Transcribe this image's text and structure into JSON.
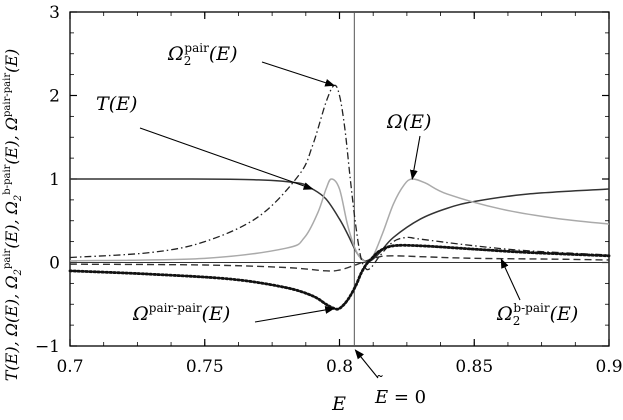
{
  "chart_data": {
    "type": "line",
    "xlabel": "E",
    "ylabel": "T(E), Ω(E), Ω₂ᵖᵃⁱʳ(E), Ω₂ᵇ⁻ᵖᵃⁱʳ(E), Ωᵖᵃⁱʳ⁻ᵖᵃⁱʳ(E)",
    "xlim": [
      0.7,
      0.9
    ],
    "ylim": [
      -1,
      3
    ],
    "xticks": [
      "0.7",
      "0.75",
      "0.8",
      "0.85",
      "0.9"
    ],
    "yticks": [
      "−1",
      "0",
      "1",
      "2",
      "3"
    ],
    "grid": false,
    "vline": {
      "x": 0.8055,
      "label": "Ẽ = 0"
    },
    "series": [
      {
        "name": "T(E)",
        "style": "solid",
        "color": "#333333",
        "points": [
          [
            0.7,
            1.0
          ],
          [
            0.74,
            1.0
          ],
          [
            0.77,
            0.99
          ],
          [
            0.785,
            0.95
          ],
          [
            0.79,
            0.88
          ],
          [
            0.795,
            0.76
          ],
          [
            0.8,
            0.52
          ],
          [
            0.803,
            0.34
          ],
          [
            0.806,
            0.14
          ],
          [
            0.808,
            0.05
          ],
          [
            0.81,
            0.01
          ],
          [
            0.812,
            0.03
          ],
          [
            0.815,
            0.12
          ],
          [
            0.82,
            0.3
          ],
          [
            0.83,
            0.52
          ],
          [
            0.84,
            0.65
          ],
          [
            0.85,
            0.73
          ],
          [
            0.87,
            0.82
          ],
          [
            0.9,
            0.88
          ]
        ]
      },
      {
        "name": "Ω(E)",
        "style": "solid",
        "color": "#aaaaaa",
        "points": [
          [
            0.7,
            0.02
          ],
          [
            0.75,
            0.05
          ],
          [
            0.78,
            0.17
          ],
          [
            0.787,
            0.3
          ],
          [
            0.792,
            0.6
          ],
          [
            0.795,
            0.88
          ],
          [
            0.797,
            1.0
          ],
          [
            0.8,
            0.88
          ],
          [
            0.803,
            0.45
          ],
          [
            0.806,
            0.15
          ],
          [
            0.809,
            0.02
          ],
          [
            0.812,
            0.05
          ],
          [
            0.816,
            0.35
          ],
          [
            0.82,
            0.7
          ],
          [
            0.824,
            0.93
          ],
          [
            0.827,
            1.0
          ],
          [
            0.832,
            0.95
          ],
          [
            0.84,
            0.82
          ],
          [
            0.86,
            0.64
          ],
          [
            0.88,
            0.53
          ],
          [
            0.9,
            0.46
          ]
        ]
      },
      {
        "name": "Ω₂ᵖᵃⁱʳ(E)",
        "style": "dashdot",
        "color": "#222222",
        "points": [
          [
            0.7,
            0.06
          ],
          [
            0.73,
            0.12
          ],
          [
            0.75,
            0.25
          ],
          [
            0.77,
            0.55
          ],
          [
            0.785,
            1.05
          ],
          [
            0.79,
            1.4
          ],
          [
            0.795,
            1.92
          ],
          [
            0.798,
            2.12
          ],
          [
            0.8,
            2.0
          ],
          [
            0.802,
            1.6
          ],
          [
            0.804,
            1.0
          ],
          [
            0.806,
            0.45
          ],
          [
            0.808,
            0.05
          ],
          [
            0.81,
            -0.08
          ],
          [
            0.812,
            -0.05
          ],
          [
            0.815,
            0.08
          ],
          [
            0.82,
            0.25
          ],
          [
            0.825,
            0.3
          ],
          [
            0.83,
            0.28
          ],
          [
            0.85,
            0.2
          ],
          [
            0.87,
            0.14
          ],
          [
            0.9,
            0.09
          ]
        ]
      },
      {
        "name": "Ω₂ᵇ⁻ᵖᵃⁱʳ(E)",
        "style": "dashed",
        "color": "#333333",
        "points": [
          [
            0.7,
            -0.02
          ],
          [
            0.75,
            -0.03
          ],
          [
            0.78,
            -0.06
          ],
          [
            0.795,
            -0.1
          ],
          [
            0.8,
            -0.09
          ],
          [
            0.805,
            -0.04
          ],
          [
            0.81,
            0.02
          ],
          [
            0.815,
            0.07
          ],
          [
            0.82,
            0.08
          ],
          [
            0.83,
            0.07
          ],
          [
            0.85,
            0.05
          ],
          [
            0.88,
            0.04
          ],
          [
            0.9,
            0.03
          ]
        ]
      },
      {
        "name": "Ωᵖᵃⁱʳ⁻ᵖᵃⁱʳ(E)",
        "style": "dotted",
        "color": "#111111",
        "points": [
          [
            0.7,
            -0.1
          ],
          [
            0.73,
            -0.14
          ],
          [
            0.76,
            -0.2
          ],
          [
            0.78,
            -0.3
          ],
          [
            0.79,
            -0.4
          ],
          [
            0.795,
            -0.5
          ],
          [
            0.798,
            -0.55
          ],
          [
            0.8,
            -0.55
          ],
          [
            0.803,
            -0.45
          ],
          [
            0.806,
            -0.28
          ],
          [
            0.808,
            -0.13
          ],
          [
            0.81,
            -0.02
          ],
          [
            0.812,
            0.05
          ],
          [
            0.815,
            0.14
          ],
          [
            0.82,
            0.2
          ],
          [
            0.83,
            0.2
          ],
          [
            0.85,
            0.16
          ],
          [
            0.87,
            0.12
          ],
          [
            0.9,
            0.08
          ]
        ]
      }
    ],
    "annotations": [
      {
        "label": "T(E)",
        "base": "T",
        "sup": "",
        "tail": "(E)",
        "series": 0,
        "at": [
          0.79,
          0.88
        ]
      },
      {
        "label": "Ω₂ᵖᵃⁱʳ(E)",
        "base": "Ω",
        "sub": "2",
        "sup": "pair",
        "tail": "(E)",
        "series": 2,
        "at": [
          0.798,
          2.12
        ]
      },
      {
        "label": "Ω(E)",
        "base": "Ω",
        "sup": "",
        "tail": "(E)",
        "series": 1,
        "at": [
          0.827,
          1.0
        ]
      },
      {
        "label": "Ωᵖᵃⁱʳ⁻ᵖᵃⁱʳ(E)",
        "base": "Ω",
        "sup": "pair-pair",
        "tail": "(E)",
        "series": 4,
        "at": [
          0.798,
          -0.55
        ]
      },
      {
        "label": "Ω₂ᵇ⁻ᵖᵃⁱʳ(E)",
        "base": "Ω",
        "sub": "2",
        "sup": "b-pair",
        "tail": "(E)",
        "series": 3,
        "at": [
          0.86,
          0.04
        ]
      }
    ]
  }
}
